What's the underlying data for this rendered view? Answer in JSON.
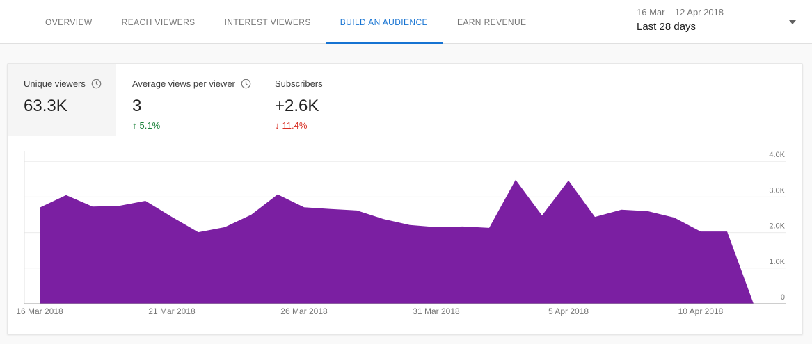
{
  "header": {
    "tabs": [
      {
        "label": "OVERVIEW",
        "active": false
      },
      {
        "label": "REACH VIEWERS",
        "active": false
      },
      {
        "label": "INTEREST VIEWERS",
        "active": false
      },
      {
        "label": "BUILD AN AUDIENCE",
        "active": true
      },
      {
        "label": "EARN REVENUE",
        "active": false
      }
    ],
    "date_range": {
      "range_text": "16 Mar – 12 Apr 2018",
      "preset_label": "Last 28 days",
      "dropdown_icon": "caret-down-icon"
    }
  },
  "metrics": [
    {
      "label": "Unique viewers",
      "value": "63.3K",
      "has_clock_icon": true,
      "selected": true,
      "delta": null
    },
    {
      "label": "Average views per viewer",
      "value": "3",
      "has_clock_icon": true,
      "selected": false,
      "delta": {
        "direction": "up",
        "text": "5.1%",
        "color": "#188038"
      }
    },
    {
      "label": "Subscribers",
      "value": "+2.6K",
      "has_clock_icon": false,
      "selected": false,
      "delta": {
        "direction": "down",
        "text": "11.4%",
        "color": "#d93025"
      }
    }
  ],
  "chart_data": {
    "type": "area",
    "title": "Unique viewers per day (16 Mar – 12 Apr 2018)",
    "x": [
      "16 Mar 2018",
      "17 Mar 2018",
      "18 Mar 2018",
      "19 Mar 2018",
      "20 Mar 2018",
      "21 Mar 2018",
      "22 Mar 2018",
      "23 Mar 2018",
      "24 Mar 2018",
      "25 Mar 2018",
      "26 Mar 2018",
      "27 Mar 2018",
      "28 Mar 2018",
      "29 Mar 2018",
      "30 Mar 2018",
      "31 Mar 2018",
      "1 Apr 2018",
      "2 Apr 2018",
      "3 Apr 2018",
      "4 Apr 2018",
      "5 Apr 2018",
      "6 Apr 2018",
      "7 Apr 2018",
      "8 Apr 2018",
      "9 Apr 2018",
      "10 Apr 2018",
      "11 Apr 2018",
      "12 Apr 2018"
    ],
    "values": [
      2700,
      3050,
      2730,
      2750,
      2890,
      2440,
      2010,
      2150,
      2500,
      3070,
      2710,
      2660,
      2620,
      2380,
      2210,
      2150,
      2170,
      2130,
      3480,
      2480,
      3460,
      2440,
      2640,
      2600,
      2420,
      2030,
      2030,
      0
    ],
    "x_tick_labels": [
      "16 Mar 2018",
      "21 Mar 2018",
      "26 Mar 2018",
      "31 Mar 2018",
      "5 Apr 2018",
      "10 Apr 2018"
    ],
    "x_tick_day_indices": [
      0,
      5,
      10,
      15,
      20,
      25
    ],
    "y_ticks": [
      {
        "value": 0,
        "label": "0"
      },
      {
        "value": 1000,
        "label": "1.0K"
      },
      {
        "value": 2000,
        "label": "2.0K"
      },
      {
        "value": 3000,
        "label": "3.0K"
      },
      {
        "value": 4000,
        "label": "4.0K"
      }
    ],
    "ylim": [
      0,
      4400
    ],
    "xlabel": "",
    "ylabel": "",
    "grid": true,
    "legend": "none",
    "area_color": "#7b1fa2"
  },
  "colors": {
    "accent_blue": "#1673d2",
    "area_purple": "#7b1fa2",
    "positive_green": "#188038",
    "negative_red": "#d93025",
    "text_dark": "#212121",
    "text_gray": "#757575",
    "tile_selected_bg": "#f5f5f5",
    "gridline": "#ececec",
    "baseline": "#9e9e9e"
  }
}
